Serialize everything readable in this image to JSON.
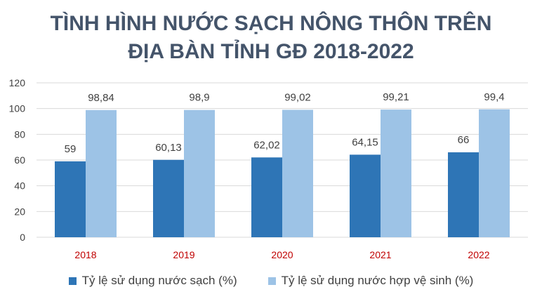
{
  "chart_data": {
    "type": "bar",
    "title_line1": "TÌNH HÌNH NƯỚC SẠCH NÔNG THÔN TRÊN",
    "title_line2": "ĐỊA BÀN TỈNH GĐ 2018-2022",
    "categories": [
      "2018",
      "2019",
      "2020",
      "2021",
      "2022"
    ],
    "series": [
      {
        "name": "Tỷ lệ sử dụng nước sạch (%)",
        "color": "#2E75B6",
        "values": [
          59,
          60.13,
          62.02,
          64.15,
          66
        ],
        "labels": [
          "59",
          "60,13",
          "62,02",
          "64,15",
          "66"
        ]
      },
      {
        "name": "Tỷ lệ sử dụng nước hợp vệ sinh (%)",
        "color": "#9DC3E6",
        "values": [
          98.84,
          98.9,
          99.02,
          99.21,
          99.4
        ],
        "labels": [
          "98,84",
          "98,9",
          "99,02",
          "99,21",
          "99,4"
        ]
      }
    ],
    "ylim": [
      0,
      120
    ],
    "yticks": [
      0,
      20,
      40,
      60,
      80,
      100,
      120
    ],
    "grid": true,
    "category_label_color": "#C00000",
    "legend_position": "bottom"
  }
}
